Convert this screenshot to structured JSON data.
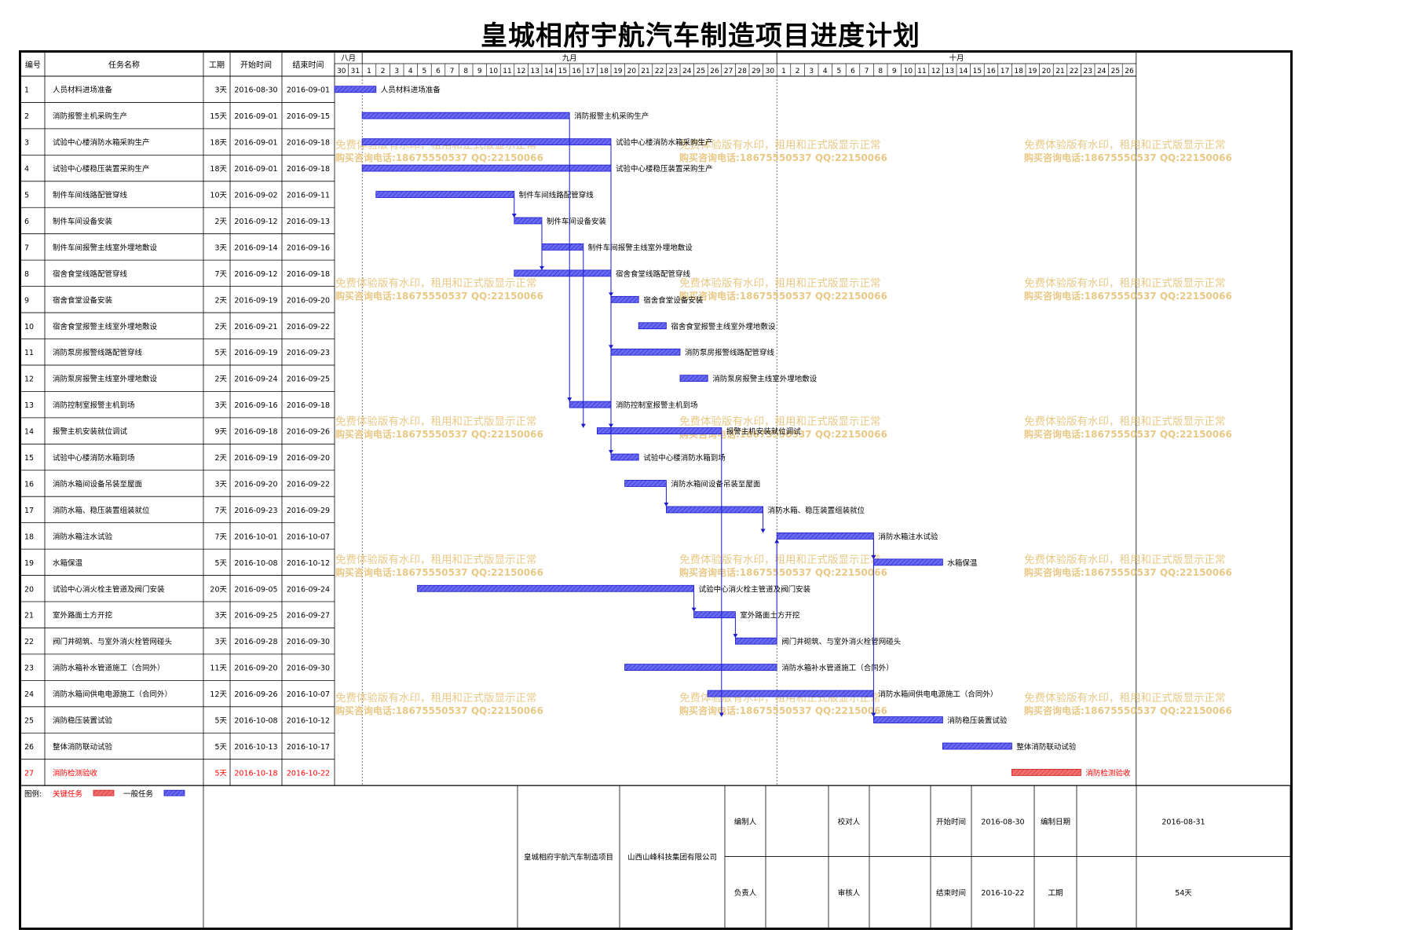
{
  "title": "皇城相府宇航汽车制造项目进度计划",
  "columns": {
    "num": "编号",
    "name": "任务名称",
    "dur": "工期",
    "start": "开始时间",
    "end": "结束时间"
  },
  "months": [
    {
      "label": "八月",
      "days": [
        "30",
        "31"
      ]
    },
    {
      "label": "九月",
      "days": [
        "1",
        "2",
        "3",
        "4",
        "5",
        "6",
        "7",
        "8",
        "9",
        "10",
        "11",
        "12",
        "13",
        "14",
        "15",
        "16",
        "17",
        "18",
        "19",
        "20",
        "21",
        "22",
        "23",
        "24",
        "25",
        "26",
        "27",
        "28",
        "29",
        "30"
      ]
    },
    {
      "label": "十月",
      "days": [
        "1",
        "2",
        "3",
        "4",
        "5",
        "6",
        "7",
        "8",
        "9",
        "10",
        "11",
        "12",
        "13",
        "14",
        "15",
        "16",
        "17",
        "18",
        "19",
        "20",
        "21",
        "22",
        "23",
        "24",
        "25",
        "26"
      ]
    }
  ],
  "legend": {
    "prefix": "图例:",
    "critical": "关键任务",
    "normal": "一般任务"
  },
  "colors": {
    "normal": "#6a6af0",
    "normal_edge": "#1a1acc",
    "critical": "#f07070",
    "critical_edge": "#cc2020",
    "critical_text": "#ff0000",
    "link": "#1a1acc",
    "watermark": "#e7c37a"
  },
  "watermark": {
    "line1": "免费体验版有水印，租用和正式版显示正常",
    "line2": "购买咨询电话:18675550537 QQ:22150066"
  },
  "footer": {
    "project": "皇城相府宇航汽车制造项目",
    "company": "山西山峰科技集团有限公司",
    "compiler_label": "编制人",
    "compiler": "",
    "checker_label": "校对人",
    "checker": "",
    "owner_label": "负责人",
    "owner": "",
    "reviewer_label": "审核人",
    "reviewer": "",
    "start_label": "开始时间",
    "start": "2016-08-30",
    "end_label": "结束时间",
    "end": "2016-10-22",
    "made_label": "编制日期",
    "made": "2016-08-31",
    "dur_label": "工期",
    "dur": "54天"
  },
  "chart_data": {
    "type": "gantt",
    "title": "皇城相府宇航汽车制造项目进度计划",
    "x_range": [
      "2016-08-30",
      "2016-10-26"
    ],
    "tasks": [
      {
        "id": "1",
        "name": "人员材料进场准备",
        "duration": "3天",
        "start": "2016-08-30",
        "end": "2016-09-01",
        "critical": false
      },
      {
        "id": "2",
        "name": "消防报警主机采购生产",
        "duration": "15天",
        "start": "2016-09-01",
        "end": "2016-09-15",
        "critical": false
      },
      {
        "id": "3",
        "name": "试验中心楼消防水箱采购生产",
        "duration": "18天",
        "start": "2016-09-01",
        "end": "2016-09-18",
        "critical": false
      },
      {
        "id": "4",
        "name": "试验中心楼稳压装置采购生产",
        "duration": "18天",
        "start": "2016-09-01",
        "end": "2016-09-18",
        "critical": false
      },
      {
        "id": "5",
        "name": "制件车间线路配管穿线",
        "duration": "10天",
        "start": "2016-09-02",
        "end": "2016-09-11",
        "critical": false
      },
      {
        "id": "6",
        "name": "制件车间设备安装",
        "duration": "2天",
        "start": "2016-09-12",
        "end": "2016-09-13",
        "critical": false
      },
      {
        "id": "7",
        "name": "制件车间报警主线室外埋地敷设",
        "duration": "3天",
        "start": "2016-09-14",
        "end": "2016-09-16",
        "critical": false
      },
      {
        "id": "8",
        "name": "宿舍食堂线路配管穿线",
        "duration": "7天",
        "start": "2016-09-12",
        "end": "2016-09-18",
        "critical": false
      },
      {
        "id": "9",
        "name": "宿舍食堂设备安装",
        "duration": "2天",
        "start": "2016-09-19",
        "end": "2016-09-20",
        "critical": false
      },
      {
        "id": "10",
        "name": "宿舍食堂报警主线室外埋地敷设",
        "duration": "2天",
        "start": "2016-09-21",
        "end": "2016-09-22",
        "critical": false
      },
      {
        "id": "11",
        "name": "消防泵房报警线路配管穿线",
        "duration": "5天",
        "start": "2016-09-19",
        "end": "2016-09-23",
        "critical": false
      },
      {
        "id": "12",
        "name": "消防泵房报警主线室外埋地敷设",
        "duration": "2天",
        "start": "2016-09-24",
        "end": "2016-09-25",
        "critical": false
      },
      {
        "id": "13",
        "name": "消防控制室报警主机到场",
        "duration": "3天",
        "start": "2016-09-16",
        "end": "2016-09-18",
        "critical": false
      },
      {
        "id": "14",
        "name": "报警主机安装就位调试",
        "duration": "9天",
        "start": "2016-09-18",
        "end": "2016-09-26",
        "critical": false
      },
      {
        "id": "15",
        "name": "试验中心楼消防水箱到场",
        "duration": "2天",
        "start": "2016-09-19",
        "end": "2016-09-20",
        "critical": false
      },
      {
        "id": "16",
        "name": "消防水箱间设备吊装至屋面",
        "duration": "3天",
        "start": "2016-09-20",
        "end": "2016-09-22",
        "critical": false
      },
      {
        "id": "17",
        "name": "消防水箱、稳压装置组装就位",
        "duration": "7天",
        "start": "2016-09-23",
        "end": "2016-09-29",
        "critical": false
      },
      {
        "id": "18",
        "name": "消防水箱注水试验",
        "duration": "7天",
        "start": "2016-10-01",
        "end": "2016-10-07",
        "critical": false
      },
      {
        "id": "19",
        "name": "水箱保温",
        "duration": "5天",
        "start": "2016-10-08",
        "end": "2016-10-12",
        "critical": false
      },
      {
        "id": "20",
        "name": "试验中心消火栓主管道及阀门安装",
        "duration": "20天",
        "start": "2016-09-05",
        "end": "2016-09-24",
        "critical": false
      },
      {
        "id": "21",
        "name": "室外路面土方开挖",
        "duration": "3天",
        "start": "2016-09-25",
        "end": "2016-09-27",
        "critical": false
      },
      {
        "id": "22",
        "name": "阀门井砌筑、与室外消火栓管网碰头",
        "duration": "3天",
        "start": "2016-09-28",
        "end": "2016-09-30",
        "critical": false
      },
      {
        "id": "23",
        "name": "消防水箱补水管道施工（合同外）",
        "duration": "11天",
        "start": "2016-09-20",
        "end": "2016-09-30",
        "critical": false
      },
      {
        "id": "24",
        "name": "消防水箱间供电电源施工（合同外）",
        "duration": "12天",
        "start": "2016-09-26",
        "end": "2016-10-07",
        "critical": false
      },
      {
        "id": "25",
        "name": "消防稳压装置试验",
        "duration": "5天",
        "start": "2016-10-08",
        "end": "2016-10-12",
        "critical": false
      },
      {
        "id": "26",
        "name": "整体消防联动试验",
        "duration": "5天",
        "start": "2016-10-13",
        "end": "2016-10-17",
        "critical": false
      },
      {
        "id": "27",
        "name": "消防检测验收",
        "duration": "5天",
        "start": "2016-10-18",
        "end": "2016-10-22",
        "critical": true
      }
    ],
    "links": [
      [
        "2",
        "13"
      ],
      [
        "5",
        "6"
      ],
      [
        "6",
        "8"
      ],
      [
        "8",
        "11"
      ],
      [
        "8",
        "9"
      ],
      [
        "3",
        "15"
      ],
      [
        "13",
        "14"
      ],
      [
        "7",
        "14"
      ],
      [
        "14",
        "25"
      ],
      [
        "16",
        "17"
      ],
      [
        "17",
        "18"
      ],
      [
        "18",
        "19"
      ],
      [
        "18",
        "25"
      ],
      [
        "20",
        "21"
      ],
      [
        "21",
        "22"
      ],
      [
        "22",
        "18"
      ],
      [
        "24",
        "25"
      ]
    ]
  }
}
